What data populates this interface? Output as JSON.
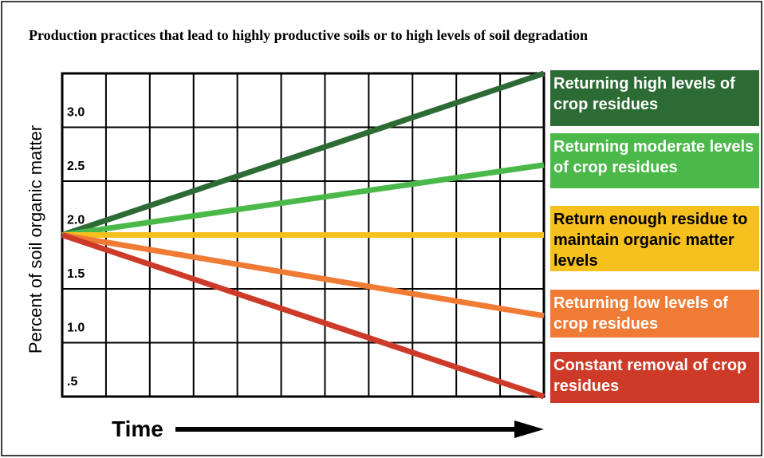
{
  "chart_data": {
    "type": "line",
    "title": "Production practices that lead to highly productive soils or to high levels of soil degradation",
    "y_label": "Percent of soil organic matter",
    "x_label": "Time",
    "categories": [
      null,
      null
    ],
    "series": [
      {
        "name": "Returning high levels of crop residues",
        "color": "#2d6b34",
        "values": [
          2.0,
          3.5
        ]
      },
      {
        "name": "Returning moderate levels of crop residues",
        "color": "#4ab94a",
        "values": [
          2.0,
          2.65
        ]
      },
      {
        "name": "Return enough residue to maintain organic matter levels",
        "color": "#f6c01f",
        "values": [
          2.0,
          2.0
        ]
      },
      {
        "name": "Returning low levels of crop residues",
        "color": "#f07b35",
        "values": [
          2.0,
          1.25
        ]
      },
      {
        "name": "Constant removal of crop residues",
        "color": "#ce3a28",
        "values": [
          2.0,
          0.5
        ]
      }
    ],
    "ylim": [
      0.5,
      3.5
    ],
    "yticks": [
      {
        "value": 0.5,
        "label": ".5"
      },
      {
        "value": 1,
        "label": "1.0"
      },
      {
        "value": 1.5,
        "label": "1.5"
      },
      {
        "value": 2,
        "label": "2.0"
      },
      {
        "value": 2.5,
        "label": "2.5"
      },
      {
        "value": 3,
        "label": "3.0"
      }
    ],
    "grid": true
  }
}
